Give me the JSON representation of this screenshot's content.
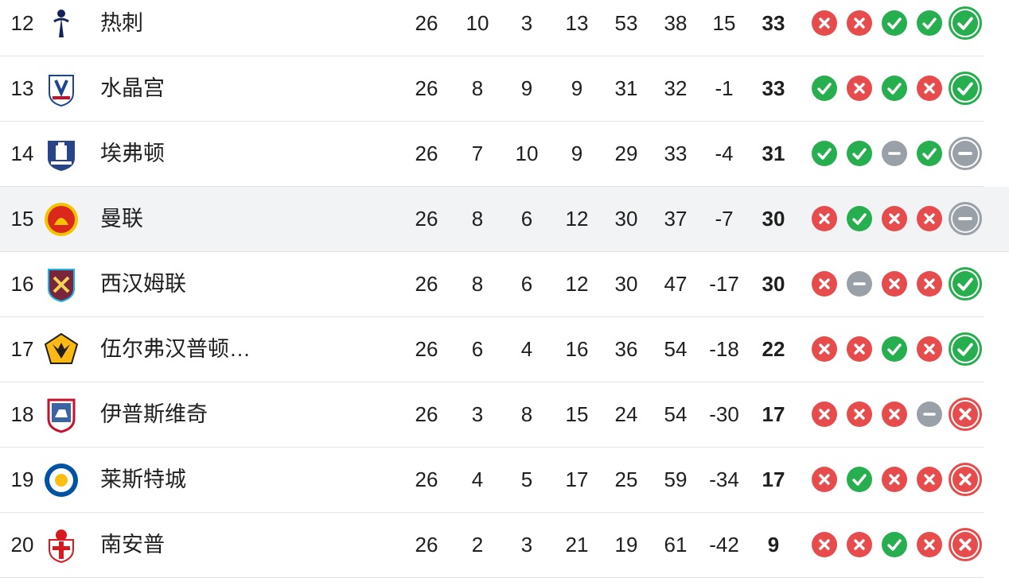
{
  "colors": {
    "win": "#27ae4f",
    "loss": "#e74c4c",
    "draw": "#9aa0a8",
    "row_divider": "#e3e3e3",
    "highlight_row": "#f2f3f5"
  },
  "rows": [
    {
      "pos": "12",
      "team": "热刺",
      "crest_icon": "tottenham-crest-icon",
      "played": "26",
      "won": "10",
      "drawn": "3",
      "lost": "13",
      "gf": "53",
      "ga": "38",
      "gd": "15",
      "pts": "33",
      "form": [
        "L",
        "L",
        "W",
        "W",
        "W"
      ],
      "highlight": false
    },
    {
      "pos": "13",
      "team": "水晶宫",
      "crest_icon": "crystal-palace-crest-icon",
      "played": "26",
      "won": "8",
      "drawn": "9",
      "lost": "9",
      "gf": "31",
      "ga": "32",
      "gd": "-1",
      "pts": "33",
      "form": [
        "W",
        "L",
        "W",
        "L",
        "W"
      ],
      "highlight": false
    },
    {
      "pos": "14",
      "team": "埃弗顿",
      "crest_icon": "everton-crest-icon",
      "played": "26",
      "won": "7",
      "drawn": "10",
      "lost": "9",
      "gf": "29",
      "ga": "33",
      "gd": "-4",
      "pts": "31",
      "form": [
        "W",
        "W",
        "D",
        "W",
        "D"
      ],
      "highlight": false
    },
    {
      "pos": "15",
      "team": "曼联",
      "crest_icon": "man-united-crest-icon",
      "played": "26",
      "won": "8",
      "drawn": "6",
      "lost": "12",
      "gf": "30",
      "ga": "37",
      "gd": "-7",
      "pts": "30",
      "form": [
        "L",
        "W",
        "L",
        "L",
        "D"
      ],
      "highlight": true
    },
    {
      "pos": "16",
      "team": "西汉姆联",
      "crest_icon": "west-ham-crest-icon",
      "played": "26",
      "won": "8",
      "drawn": "6",
      "lost": "12",
      "gf": "30",
      "ga": "47",
      "gd": "-17",
      "pts": "30",
      "form": [
        "L",
        "D",
        "L",
        "L",
        "W"
      ],
      "highlight": false
    },
    {
      "pos": "17",
      "team": "伍尔弗汉普顿…",
      "crest_icon": "wolves-crest-icon",
      "played": "26",
      "won": "6",
      "drawn": "4",
      "lost": "16",
      "gf": "36",
      "ga": "54",
      "gd": "-18",
      "pts": "22",
      "form": [
        "L",
        "L",
        "W",
        "L",
        "W"
      ],
      "highlight": false
    },
    {
      "pos": "18",
      "team": "伊普斯维奇",
      "crest_icon": "ipswich-crest-icon",
      "played": "26",
      "won": "3",
      "drawn": "8",
      "lost": "15",
      "gf": "24",
      "ga": "54",
      "gd": "-30",
      "pts": "17",
      "form": [
        "L",
        "L",
        "L",
        "D",
        "L"
      ],
      "highlight": false
    },
    {
      "pos": "19",
      "team": "莱斯特城",
      "crest_icon": "leicester-crest-icon",
      "played": "26",
      "won": "4",
      "drawn": "5",
      "lost": "17",
      "gf": "25",
      "ga": "59",
      "gd": "-34",
      "pts": "17",
      "form": [
        "L",
        "W",
        "L",
        "L",
        "L"
      ],
      "highlight": false
    },
    {
      "pos": "20",
      "team": "南安普",
      "crest_icon": "southampton-crest-icon",
      "played": "26",
      "won": "2",
      "drawn": "3",
      "lost": "21",
      "gf": "19",
      "ga": "61",
      "gd": "-42",
      "pts": "9",
      "form": [
        "L",
        "L",
        "W",
        "L",
        "L"
      ],
      "highlight": false
    }
  ]
}
